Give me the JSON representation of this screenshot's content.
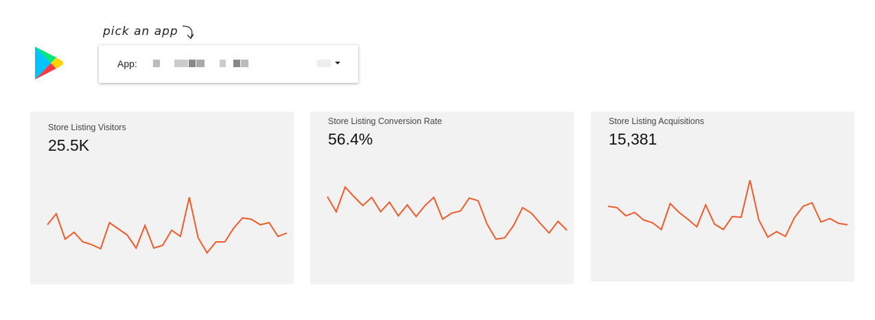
{
  "annotation": "pick an app",
  "app_selector": {
    "label": "App:"
  },
  "cards": [
    {
      "title": "Store Listing Visitors",
      "value": "25.5K",
      "values": [
        72,
        88,
        51,
        61,
        47,
        43,
        37,
        75,
        66,
        57,
        38,
        71,
        38,
        42,
        64,
        55,
        112,
        53,
        31,
        47,
        47,
        67,
        82,
        80,
        72,
        75,
        55,
        60
      ]
    },
    {
      "title": "Store Listing Conversion Rate",
      "value": "56.4%",
      "values": [
        113,
        91,
        127,
        113,
        100,
        112,
        91,
        105,
        85,
        101,
        84,
        100,
        112,
        80,
        89,
        92,
        111,
        107,
        73,
        51,
        53,
        71,
        97,
        89,
        74,
        60,
        77,
        64
      ]
    },
    {
      "title": "Store Listing Acquisitions",
      "value": "15,381",
      "values": [
        99,
        97,
        85,
        90,
        79,
        75,
        65,
        103,
        90,
        80,
        69,
        101,
        73,
        65,
        84,
        83,
        137,
        79,
        54,
        62,
        55,
        82,
        99,
        104,
        76,
        81,
        74,
        72
      ]
    }
  ]
}
